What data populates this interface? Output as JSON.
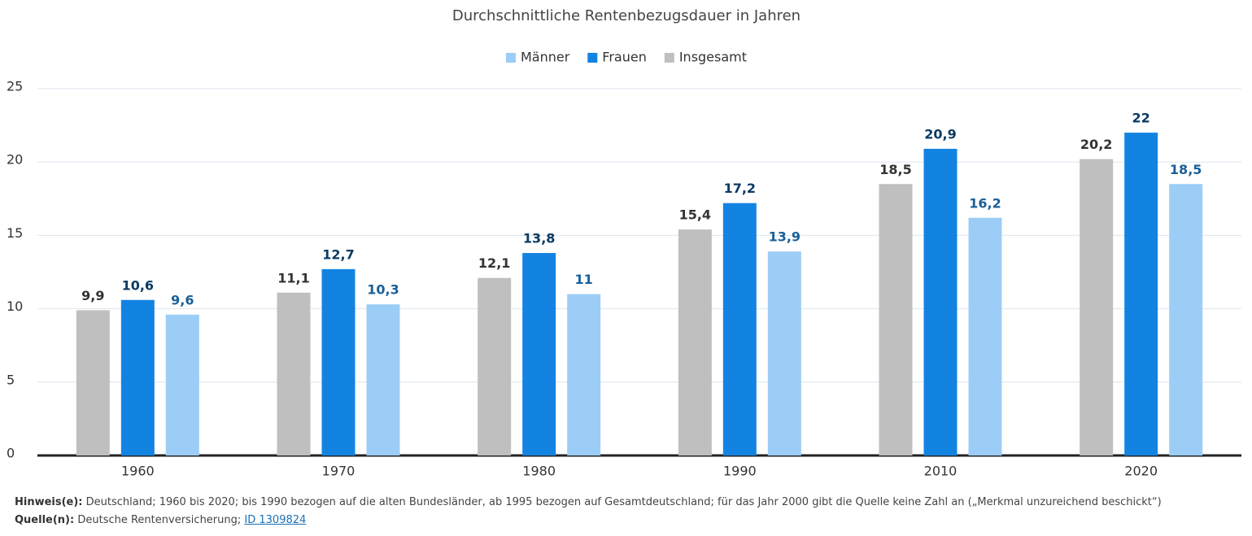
{
  "chart_data": {
    "type": "bar",
    "title": "Durchschnittliche Rentenbezugsdauer in Jahren",
    "categories": [
      "1960",
      "1970",
      "1980",
      "1990",
      "2010",
      "2020"
    ],
    "series": [
      {
        "name": "Männer",
        "color": "#9ccdf7",
        "values": [
          9.6,
          10.3,
          11,
          13.9,
          16.2,
          18.5
        ],
        "value_labels": [
          "9,6",
          "10,3",
          "11",
          "13,9",
          "16,2",
          "18,5"
        ]
      },
      {
        "name": "Frauen",
        "color": "#1383e2",
        "values": [
          10.6,
          12.7,
          13.8,
          17.2,
          20.9,
          22
        ],
        "value_labels": [
          "10,6",
          "12,7",
          "13,8",
          "17,2",
          "20,9",
          "22"
        ]
      },
      {
        "name": "Insgesamt",
        "color": "#bfbfbf",
        "values": [
          9.9,
          11.1,
          12.1,
          15.4,
          18.5,
          20.2
        ],
        "value_labels": [
          "9,9",
          "11,1",
          "12,1",
          "15,4",
          "18,5",
          "20,2"
        ]
      }
    ],
    "ylim": [
      0,
      25
    ],
    "yticks": [
      0,
      5,
      10,
      15,
      20,
      25
    ],
    "grid": true,
    "legend": "top",
    "notes": {
      "hint_label": "Hinweis(e):",
      "hint": "Deutschland; 1960 bis 2020; bis 1990 bezogen auf die alten Bundesländer, ab 1995 bezogen auf Gesamtdeutschland; für das Jahr 2000 gibt die Quelle keine Zahl an („Merkmal unzureichend beschickt“)",
      "source_label": "Quelle(n):",
      "source": "Deutsche Rentenversicherung;",
      "source_id": "ID 1309824"
    }
  }
}
